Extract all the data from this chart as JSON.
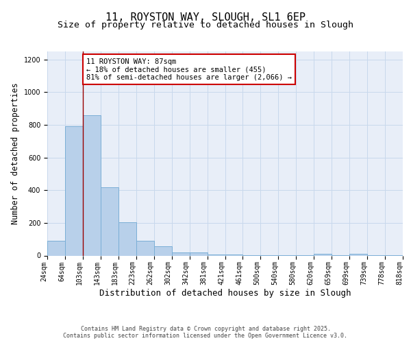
{
  "title1": "11, ROYSTON WAY, SLOUGH, SL1 6EP",
  "title2": "Size of property relative to detached houses in Slough",
  "xlabel": "Distribution of detached houses by size in Slough",
  "ylabel": "Number of detached properties",
  "bar_vals": [
    90,
    790,
    860,
    420,
    205,
    90,
    55,
    20,
    20,
    5,
    5,
    2,
    2,
    2,
    2,
    10,
    2,
    10,
    2,
    2
  ],
  "labels": [
    "24sqm",
    "64sqm",
    "103sqm",
    "143sqm",
    "183sqm",
    "223sqm",
    "262sqm",
    "302sqm",
    "342sqm",
    "381sqm",
    "421sqm",
    "461sqm",
    "500sqm",
    "540sqm",
    "580sqm",
    "620sqm",
    "659sqm",
    "699sqm",
    "739sqm",
    "778sqm",
    "818sqm"
  ],
  "bar_color": "#b8d0ea",
  "bar_edge_color": "#7aaed6",
  "grid_color": "#c8d8ec",
  "background_color": "#e8eef8",
  "vline_x": 2.0,
  "vline_color": "#990000",
  "annotation_text": "11 ROYSTON WAY: 87sqm\n← 18% of detached houses are smaller (455)\n81% of semi-detached houses are larger (2,066) →",
  "annotation_box_facecolor": "#ffffff",
  "annotation_box_edgecolor": "#cc0000",
  "ylim": [
    0,
    1250
  ],
  "yticks": [
    0,
    200,
    400,
    600,
    800,
    1000,
    1200
  ],
  "footnote": "Contains HM Land Registry data © Crown copyright and database right 2025.\nContains public sector information licensed under the Open Government Licence v3.0.",
  "title1_fontsize": 11,
  "title2_fontsize": 9.5,
  "xlabel_fontsize": 9,
  "ylabel_fontsize": 8.5,
  "tick_fontsize": 7,
  "annot_fontsize": 7.5,
  "footnote_fontsize": 6
}
